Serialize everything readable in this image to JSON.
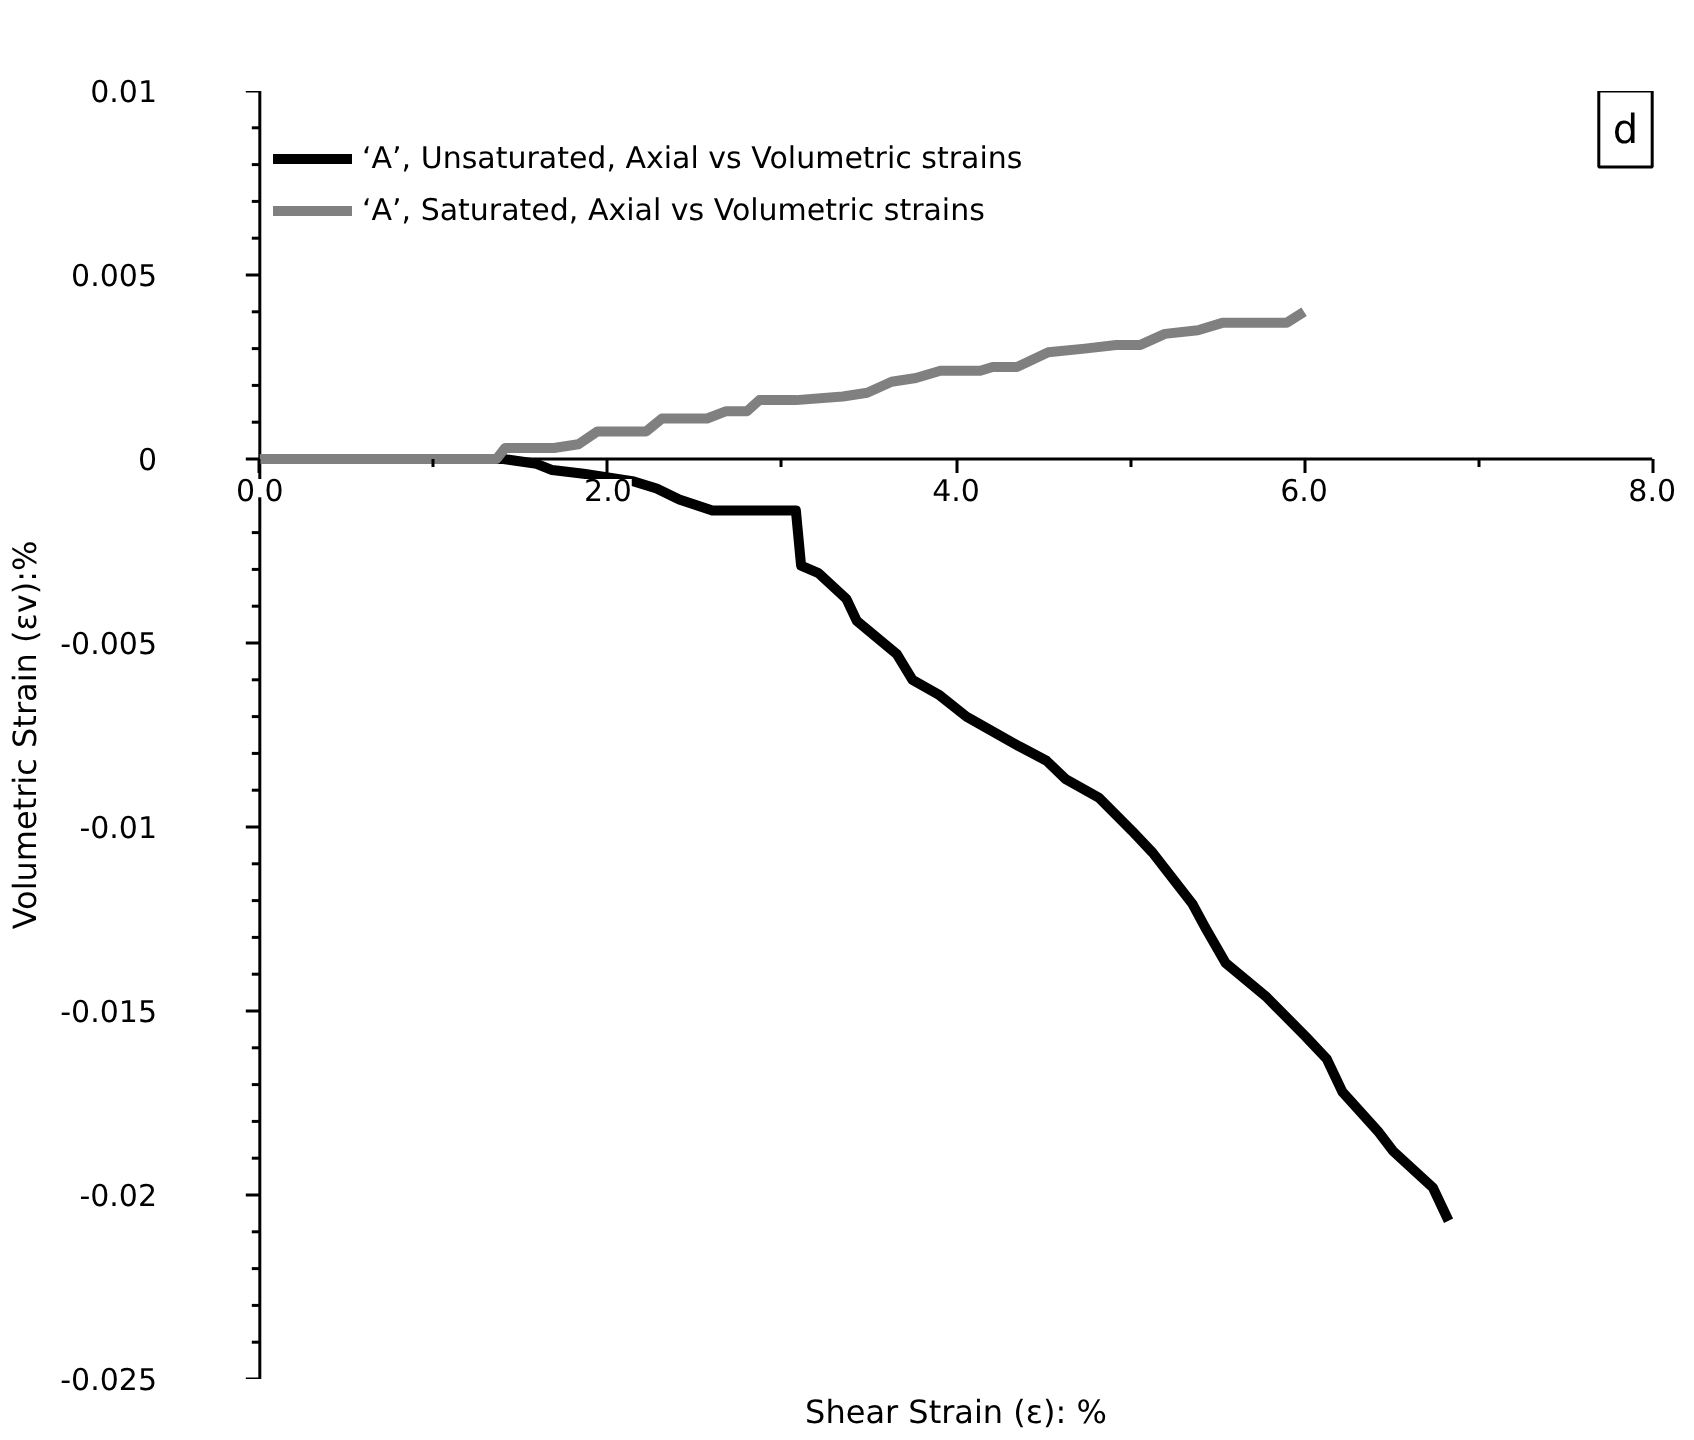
{
  "chart_data": {
    "type": "line",
    "xlabel": "Shear Strain (ε): %",
    "ylabel": "Volumetric Strain (εv):%",
    "annotations": [
      "d"
    ],
    "xlim": [
      0,
      8
    ],
    "ylim": [
      -0.025,
      0.01
    ],
    "xticks": [
      {
        "value": 0,
        "label": "0.0"
      },
      {
        "value": 1,
        "label": null
      },
      {
        "value": 2,
        "label": "2.0"
      },
      {
        "value": 3,
        "label": null
      },
      {
        "value": 4,
        "label": "4.0"
      },
      {
        "value": 5,
        "label": null
      },
      {
        "value": 6,
        "label": "6.0"
      },
      {
        "value": 7,
        "label": null
      },
      {
        "value": 8,
        "label": "8.0"
      }
    ],
    "yticks": [
      -0.025,
      -0.02,
      -0.015,
      -0.01,
      -0.005,
      0,
      0.005,
      0.01,
      {
        "value": -0.024,
        "label": null
      },
      {
        "value": -0.023,
        "label": null
      },
      {
        "value": -0.022,
        "label": null
      },
      {
        "value": -0.021,
        "label": null
      },
      {
        "value": -0.019,
        "label": null
      },
      {
        "value": -0.018,
        "label": null
      },
      {
        "value": -0.017,
        "label": null
      },
      {
        "value": -0.016,
        "label": null
      },
      {
        "value": -0.014,
        "label": null
      },
      {
        "value": -0.013,
        "label": null
      },
      {
        "value": -0.012,
        "label": null
      },
      {
        "value": -0.011,
        "label": null
      },
      {
        "value": -0.009,
        "label": null
      },
      {
        "value": -0.008,
        "label": null
      },
      {
        "value": -0.007,
        "label": null
      },
      {
        "value": -0.006,
        "label": null
      },
      {
        "value": -0.004,
        "label": null
      },
      {
        "value": -0.003,
        "label": null
      },
      {
        "value": -0.002,
        "label": null
      },
      {
        "value": -0.001,
        "label": null
      },
      {
        "value": 0.001,
        "label": null
      },
      {
        "value": 0.002,
        "label": null
      },
      {
        "value": 0.003,
        "label": null
      },
      {
        "value": 0.004,
        "label": null
      },
      {
        "value": 0.006,
        "label": null
      },
      {
        "value": 0.007,
        "label": null
      },
      {
        "value": 0.008,
        "label": null
      },
      {
        "value": 0.009,
        "label": null
      }
    ],
    "grid": false,
    "legend": "top left",
    "marker": "none",
    "line_style": "solid",
    "series": [
      {
        "name": "‘A’, Unsaturated, Axial vs Volumetric strains",
        "color": "#000000",
        "x": [
          0,
          1.4,
          1.59,
          1.68,
          1.86,
          2.14,
          2.28,
          2.41,
          2.6,
          3.08,
          3.11,
          3.21,
          3.37,
          3.43,
          3.66,
          3.75,
          3.9,
          4.06,
          4.36,
          4.52,
          4.63,
          4.82,
          5.01,
          5.13,
          5.36,
          5.44,
          5.55,
          5.78,
          6.01,
          6.13,
          6.22,
          6.43,
          6.51,
          6.74,
          6.83
        ],
        "values": [
          0,
          0,
          -0.00013,
          -0.0003,
          -0.0004,
          -0.0006,
          -0.0008,
          -0.0011,
          -0.0014,
          -0.0014,
          -0.0029,
          -0.0031,
          -0.0038,
          -0.0044,
          -0.0053,
          -0.006,
          -0.0064,
          -0.007,
          -0.0078,
          -0.0082,
          -0.0087,
          -0.0092,
          -0.0101,
          -0.0107,
          -0.0121,
          -0.0128,
          -0.0137,
          -0.0146,
          -0.0157,
          -0.0163,
          -0.0172,
          -0.0183,
          -0.0188,
          -0.0198,
          -0.0207
        ]
      },
      {
        "name": "‘A’, Saturated, Axial vs Volumetric strains",
        "color": "#808080",
        "x": [
          0,
          1.36,
          1.41,
          1.69,
          1.83,
          1.94,
          2.22,
          2.31,
          2.57,
          2.68,
          2.8,
          2.87,
          3.08,
          3.35,
          3.49,
          3.63,
          3.77,
          3.91,
          4.14,
          4.21,
          4.35,
          4.53,
          4.74,
          4.92,
          5.06,
          5.2,
          5.39,
          5.53,
          5.71,
          5.9,
          6.0
        ],
        "values": [
          0,
          0,
          0.0003,
          0.0003,
          0.0004,
          0.00075,
          0.00075,
          0.0011,
          0.0011,
          0.0013,
          0.0013,
          0.0016,
          0.0016,
          0.0017,
          0.0018,
          0.0021,
          0.0022,
          0.0024,
          0.0024,
          0.0025,
          0.0025,
          0.0029,
          0.003,
          0.0031,
          0.0031,
          0.0034,
          0.0035,
          0.0037,
          0.0037,
          0.0037,
          0.004
        ]
      }
    ]
  }
}
